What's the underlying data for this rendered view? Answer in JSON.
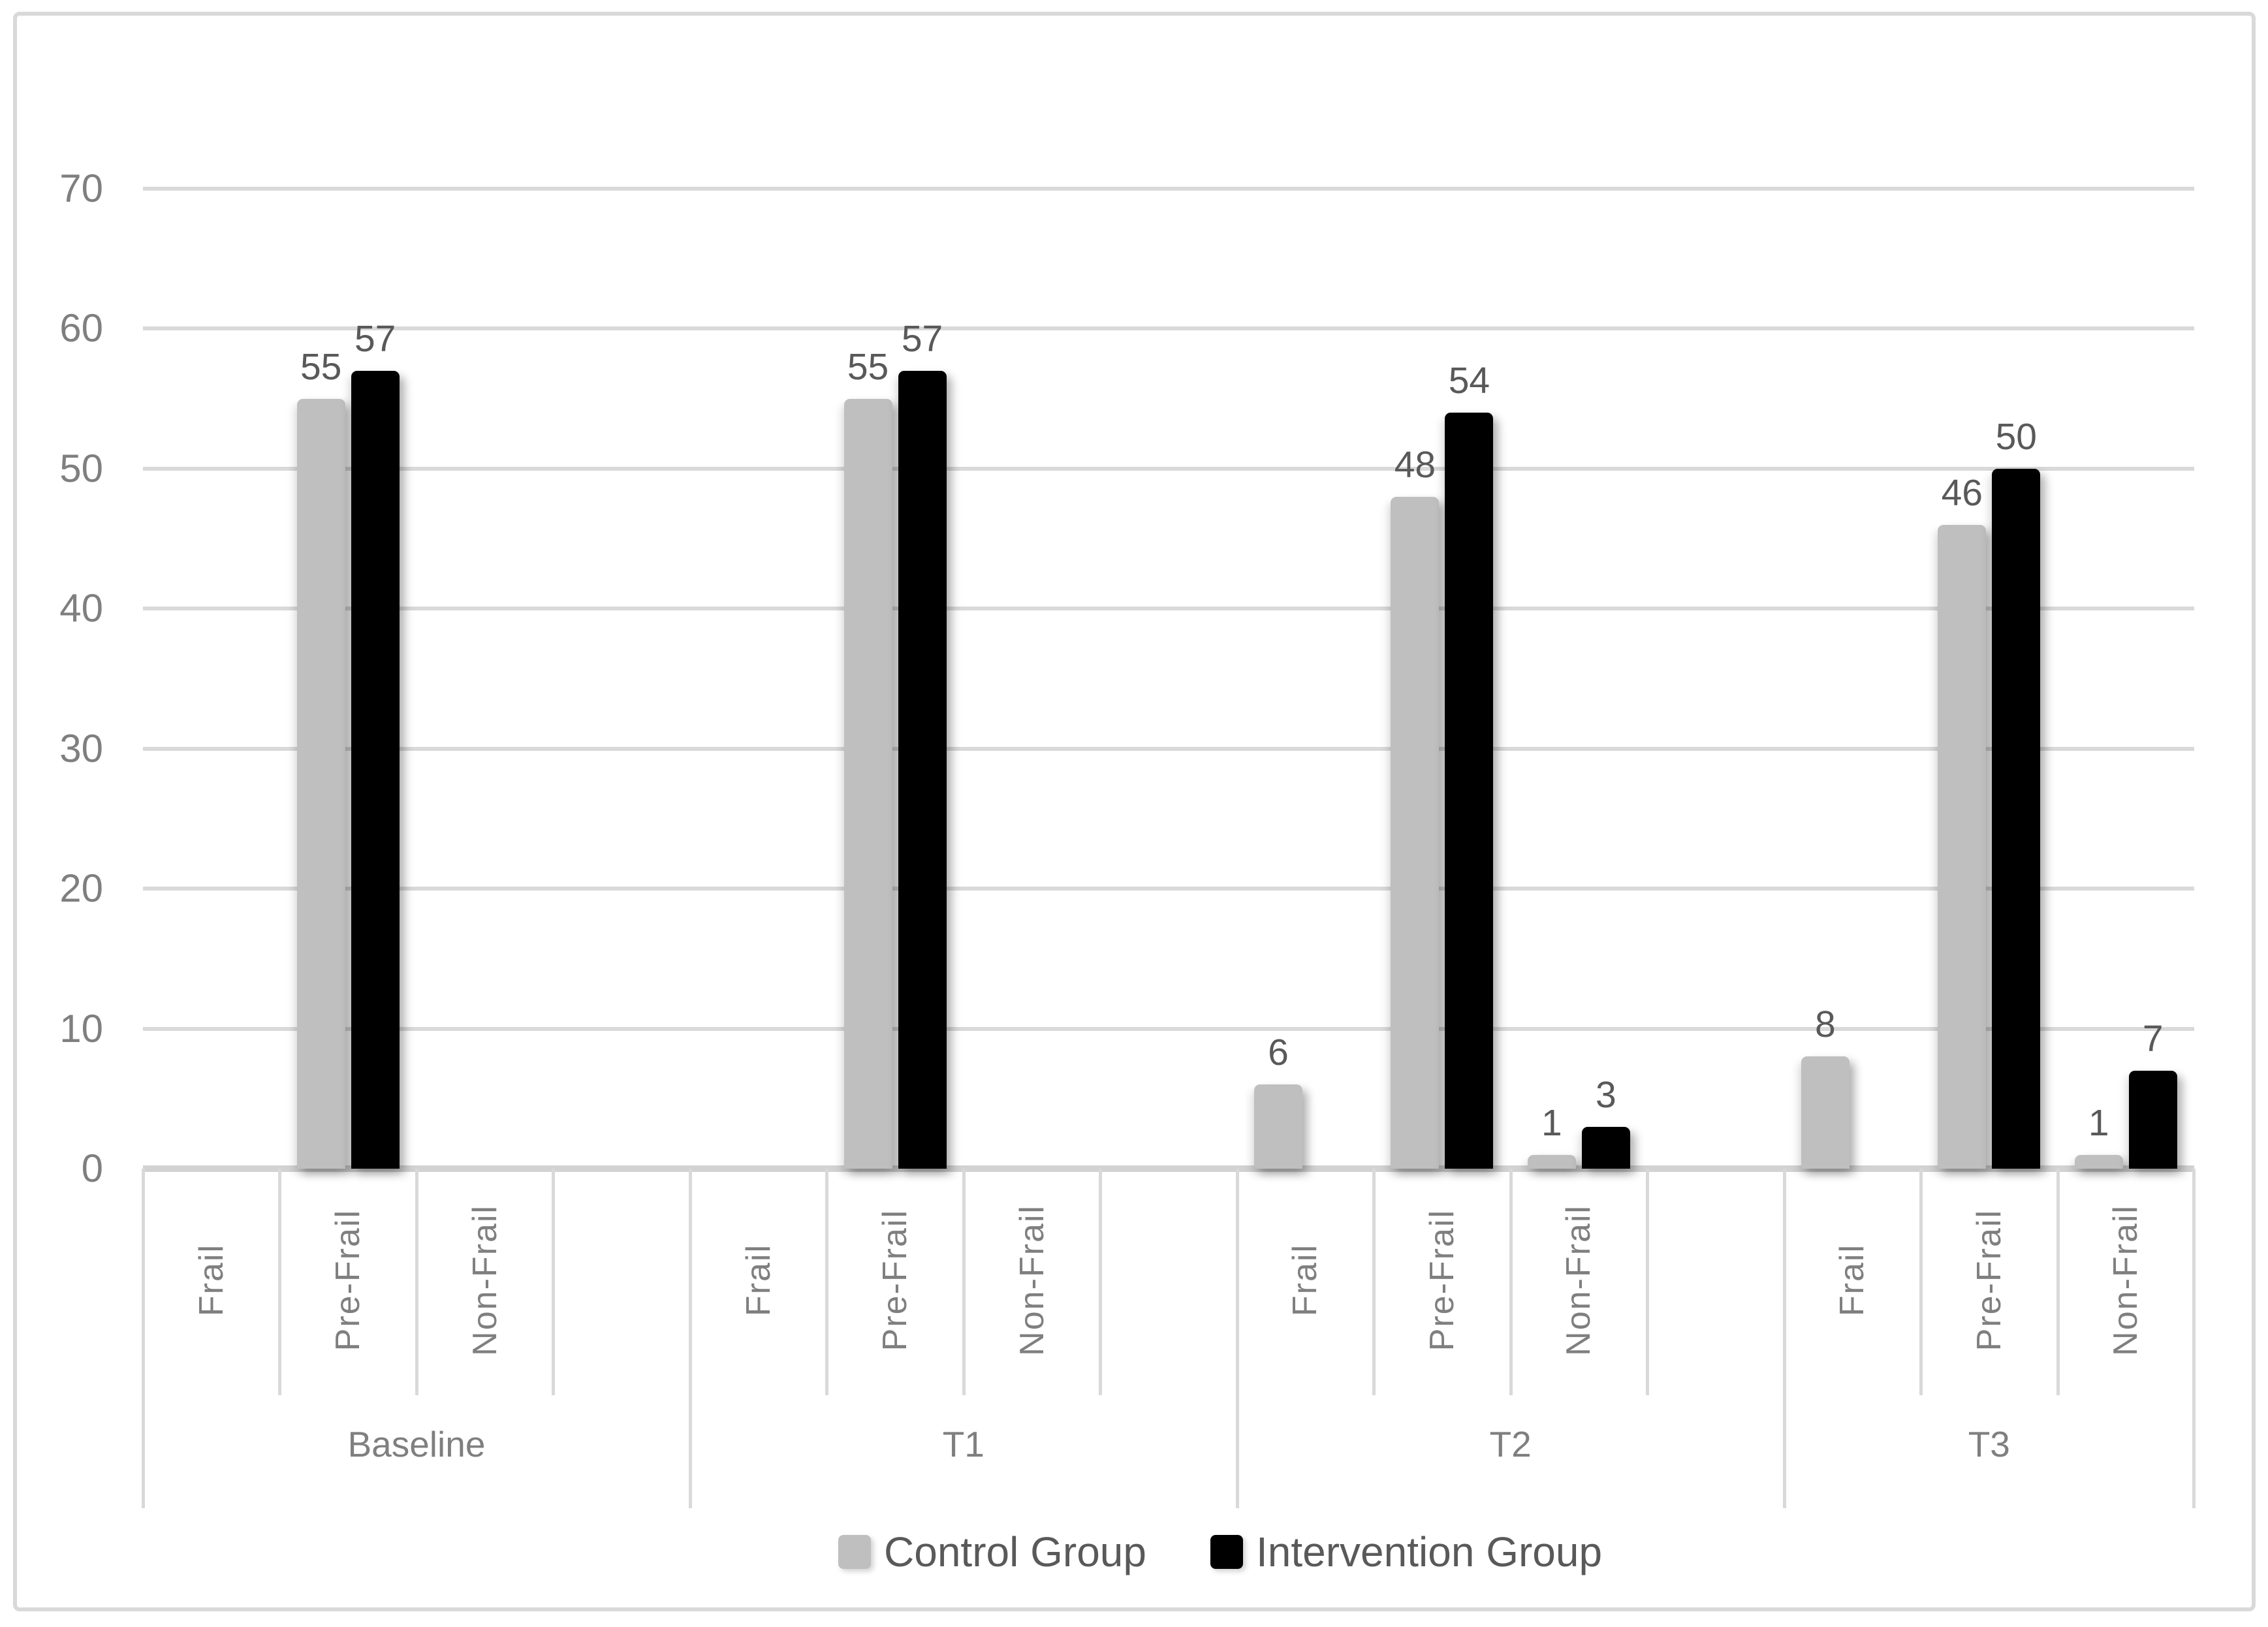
{
  "chart_data": {
    "type": "bar",
    "title": "",
    "xlabel": "",
    "ylabel": "",
    "ylim": [
      0,
      70
    ],
    "yticks": [
      0,
      10,
      20,
      30,
      40,
      50,
      60,
      70
    ],
    "grid": true,
    "legend_position": "bottom-center",
    "series": [
      {
        "name": "Control Group",
        "color": "#bfbfbf"
      },
      {
        "name": "Intervention Group",
        "color": "#000000"
      }
    ],
    "groups": [
      {
        "label": "Baseline",
        "categories": [
          {
            "label": "Frail",
            "values": [
              null,
              null
            ]
          },
          {
            "label": "Pre-Frail",
            "values": [
              55,
              57
            ]
          },
          {
            "label": "Non-Frail",
            "values": [
              null,
              null
            ]
          },
          {
            "label": "",
            "values": [
              null,
              null
            ]
          }
        ]
      },
      {
        "label": "T1",
        "categories": [
          {
            "label": "Frail",
            "values": [
              null,
              null
            ]
          },
          {
            "label": "Pre-Frail",
            "values": [
              55,
              57
            ]
          },
          {
            "label": "Non-Frail",
            "values": [
              null,
              null
            ]
          },
          {
            "label": "",
            "values": [
              null,
              null
            ]
          }
        ]
      },
      {
        "label": "T2",
        "categories": [
          {
            "label": "Frail",
            "values": [
              6,
              null
            ]
          },
          {
            "label": "Pre-Frail",
            "values": [
              48,
              54
            ]
          },
          {
            "label": "Non-Frail",
            "values": [
              1,
              3
            ]
          },
          {
            "label": "",
            "values": [
              null,
              null
            ]
          }
        ]
      },
      {
        "label": "T3",
        "categories": [
          {
            "label": "Frail",
            "values": [
              8,
              null
            ]
          },
          {
            "label": "Pre-Frail",
            "values": [
              46,
              50
            ]
          },
          {
            "label": "Non-Frail",
            "values": [
              1,
              7
            ]
          }
        ]
      }
    ]
  },
  "colors": {
    "background": "#ffffff",
    "border": "#d9d9d9",
    "grid": "#d9d9d9",
    "axis_line": "#d2d2d2",
    "tick_label": "#7f7f7f",
    "category_label": "#7f7f7f",
    "group_label": "#7f7f7f",
    "data_label": "#595959",
    "legend_text": "#595959",
    "control_bar": "#bfbfbf",
    "intervention_bar": "#000000"
  }
}
